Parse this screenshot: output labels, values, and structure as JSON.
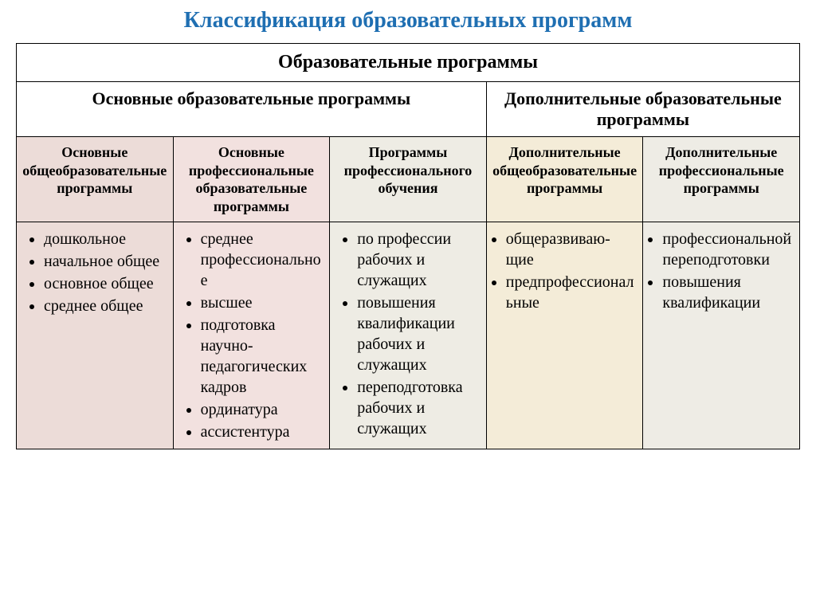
{
  "title": "Классификация  образовательных программ",
  "colors": {
    "title": "#1f6fb2",
    "border": "#000000",
    "bg_page": "#ffffff",
    "col1_bg": "#ecdcd8",
    "col2_bg": "#f2e1df",
    "col3_bg": "#eeece4",
    "col4_bg": "#f4ecd8",
    "col5_bg": "#eeece5"
  },
  "font": {
    "title_size": 28,
    "group_size": 22,
    "sub_size": 18,
    "body_size": 20
  },
  "table": {
    "header_top": "Образовательные программы",
    "group_left": "Основные образовательные программы",
    "group_right": "Дополнительные образовательные программы",
    "subheaders": [
      "Основные общеобразовательные программы",
      "Основные профессиональные образовательные программы",
      "Программы профессионального обучения",
      "Дополнительные общеобразовательные программы",
      "Дополнительные профессиональные программы"
    ],
    "columns": [
      {
        "items": [
          "дошкольное",
          "начальное общее",
          "основное общее",
          "среднее общее"
        ]
      },
      {
        "items": [
          "среднее профессиональное",
          "высшее",
          "подготовка научно-педагогических кадров",
          "ординатура",
          "ассистентура"
        ]
      },
      {
        "items": [
          "по профессии рабочих и служащих",
          "повышения квалификации рабочих и служащих",
          "переподготовка рабочих и служащих"
        ]
      },
      {
        "items": [
          "общеразвиваю-щие",
          "предпрофессиональные"
        ]
      },
      {
        "items": [
          "профессиональной переподготовки",
          "повышения квалификации"
        ]
      }
    ]
  }
}
